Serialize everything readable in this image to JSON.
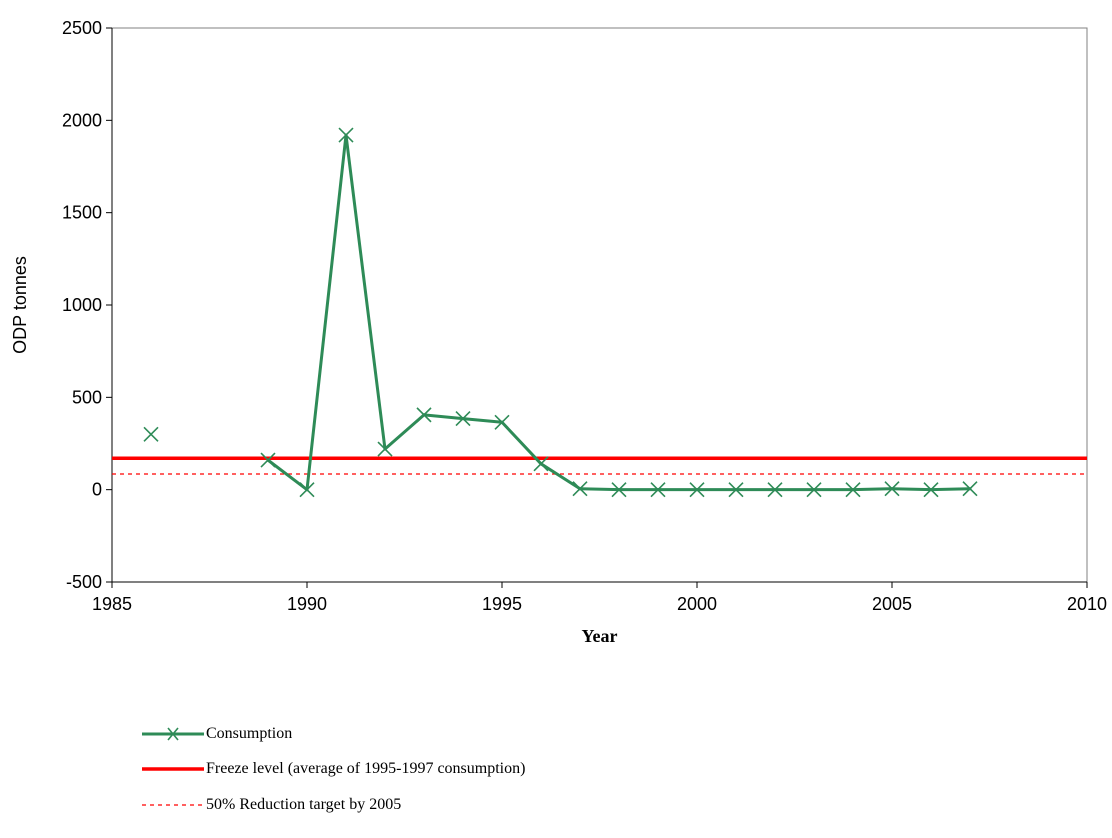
{
  "chart_data": {
    "type": "line",
    "title": "",
    "xlabel": "Year",
    "ylabel": "ODP tonnes",
    "xlim": [
      1985,
      2010
    ],
    "ylim": [
      -500,
      2500
    ],
    "xticks": [
      1985,
      1990,
      1995,
      2000,
      2005,
      2010
    ],
    "yticks": [
      -500,
      0,
      500,
      1000,
      1500,
      2000,
      2500
    ],
    "grid": false,
    "legend_position": "bottom",
    "series": [
      {
        "name": "Consumption",
        "color": "#2e8b57",
        "style": "solid",
        "marker": "x",
        "points": [
          [
            1986,
            300
          ],
          [
            1989,
            160
          ],
          [
            1990,
            0
          ],
          [
            1991,
            1920
          ],
          [
            1992,
            220
          ],
          [
            1993,
            405
          ],
          [
            1994,
            385
          ],
          [
            1995,
            365
          ],
          [
            1996,
            140
          ],
          [
            1997,
            5
          ],
          [
            1998,
            0
          ],
          [
            1999,
            0
          ],
          [
            2000,
            0
          ],
          [
            2001,
            0
          ],
          [
            2002,
            0
          ],
          [
            2003,
            0
          ],
          [
            2004,
            0
          ],
          [
            2005,
            5
          ],
          [
            2006,
            0
          ],
          [
            2007,
            5
          ]
        ]
      },
      {
        "name": "Freeze level (average of 1995-1997 consumption)",
        "color": "#ff0000",
        "style": "solid",
        "value": 170
      },
      {
        "name": "50% Reduction target by 2005",
        "color": "#ff0000",
        "style": "dashed",
        "value": 85
      }
    ]
  }
}
